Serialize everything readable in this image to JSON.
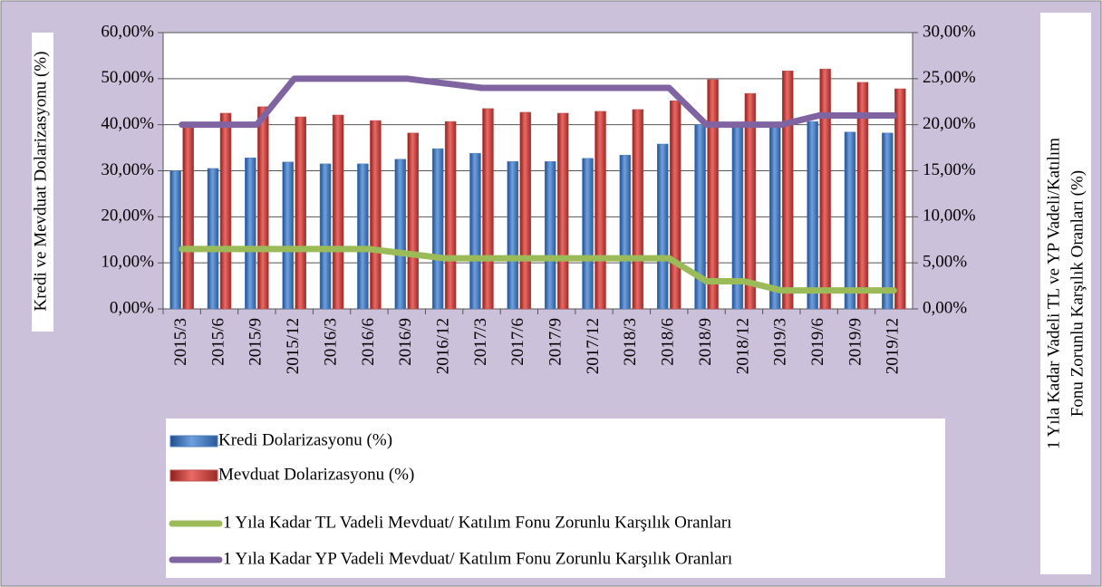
{
  "chart_data": {
    "type": "bar-line",
    "ylabel": "Kredi ve Mevduat Dolarizasyonu (%)",
    "y2label": [
      "1 Yıla Kadar Vadeli TL ve YP Vadeli/Katılım",
      "Fonu Zorunlu Karşılık Oranları  (%)"
    ],
    "categories": [
      "2015/3",
      "2015/6",
      "2015/9",
      "2015/12",
      "2016/3",
      "2016/6",
      "2016/9",
      "2016/12",
      "2017/3",
      "2017/6",
      "2017/9",
      "2017/12",
      "2018/3",
      "2018/6",
      "2018/9",
      "2018/12",
      "2019/3",
      "2019/6",
      "2019/9",
      "2019/12"
    ],
    "series": [
      {
        "name": "Kredi Dolarizasyonu (%)",
        "color": "#4f81bd",
        "kind": "bar",
        "axis": "y",
        "values": [
          30,
          30.5,
          32.8,
          31.9,
          31.5,
          31.5,
          32.5,
          34.8,
          33.8,
          32,
          32,
          32.7,
          33.4,
          35.8,
          40,
          40,
          40,
          40.7,
          38.4,
          38.2
        ]
      },
      {
        "name": "Mevduat Dolarizasyonu (%)",
        "color": "#c0504d",
        "kind": "bar",
        "axis": "y",
        "values": [
          39.5,
          42.5,
          43.9,
          41.7,
          42.1,
          40.9,
          38.2,
          40.7,
          43.5,
          42.7,
          42.5,
          42.9,
          43.3,
          45.2,
          49.8,
          46.8,
          51.7,
          52.1,
          49.2,
          47.8
        ]
      },
      {
        "name": "1 Yıla Kadar TL Vadeli Mevduat/ Katılım Fonu Zorunlu Karşılık Oranları",
        "color": "#9bbb59",
        "kind": "line",
        "axis": "y2",
        "values": [
          6.5,
          6.5,
          6.5,
          6.5,
          6.5,
          6.5,
          6,
          5.5,
          5.5,
          5.5,
          5.5,
          5.5,
          5.5,
          5.5,
          3,
          3,
          2,
          2,
          2,
          2
        ]
      },
      {
        "name": "1 Yıla Kadar YP Vadeli Mevduat/ Katılım Fonu Zorunlu Karşılık Oranları",
        "color": "#8064a2",
        "kind": "line",
        "axis": "y2",
        "values": [
          20,
          20,
          20,
          25,
          25,
          25,
          25,
          24.5,
          24,
          24,
          24,
          24,
          24,
          24,
          20,
          20,
          20,
          21,
          21,
          21
        ]
      }
    ],
    "ylim": [
      0,
      60
    ],
    "yticks": [
      {
        "value": 0,
        "label": "0,00%"
      },
      {
        "value": 10,
        "label": "10,00%"
      },
      {
        "value": 20,
        "label": "20,00%"
      },
      {
        "value": 30,
        "label": "30,00%"
      },
      {
        "value": 40,
        "label": "40,00%"
      },
      {
        "value": 50,
        "label": "50,00%"
      },
      {
        "value": 60,
        "label": "60,00%"
      }
    ],
    "y2lim": [
      0,
      30
    ],
    "y2ticks": [
      {
        "value": 0,
        "label": "0,00%"
      },
      {
        "value": 5,
        "label": "5,00%"
      },
      {
        "value": 10,
        "label": "10,00%"
      },
      {
        "value": 15,
        "label": "15,00%"
      },
      {
        "value": 20,
        "label": "20,00%"
      },
      {
        "value": 25,
        "label": "25,00%"
      },
      {
        "value": 30,
        "label": "30,00%"
      }
    ],
    "grid": true
  }
}
